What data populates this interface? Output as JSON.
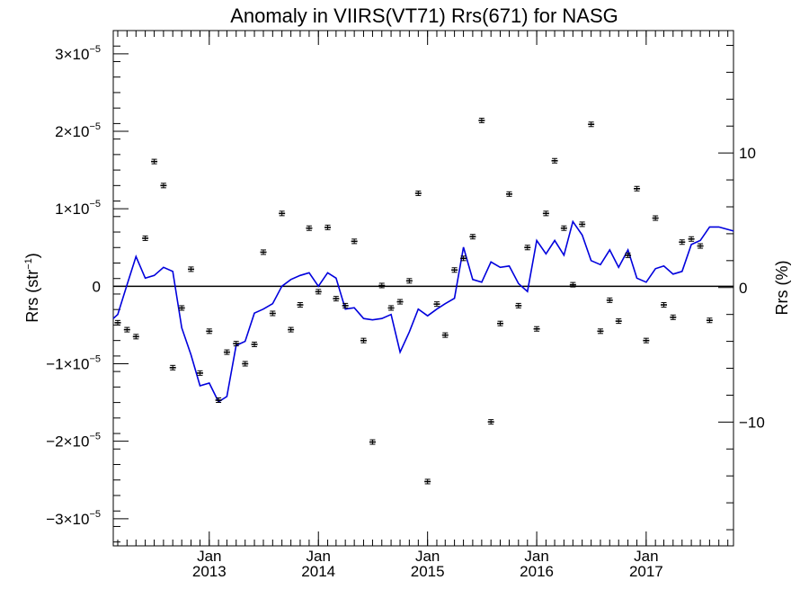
{
  "chart_data": {
    "type": "scatter",
    "title": "Anomaly in VIIRS(VT71) Rrs(671) for NASG",
    "ylabel_base": "Rrs (str",
    "ylabel_sup": "−1",
    "ylabel_close": ")",
    "y2label": "Rrs (%)",
    "xlim": [
      "2012-02-15",
      "2017-10-20"
    ],
    "ylim": [
      -3.35e-05,
      3.3e-05
    ],
    "y2lim": [
      -19.2,
      19.1
    ],
    "x_ticks": [
      {
        "month": "Jan",
        "year": "2013",
        "date": "2013-01-01"
      },
      {
        "month": "Jan",
        "year": "2014",
        "date": "2014-01-01"
      },
      {
        "month": "Jan",
        "year": "2015",
        "date": "2015-01-01"
      },
      {
        "month": "Jan",
        "year": "2016",
        "date": "2016-01-01"
      },
      {
        "month": "Jan",
        "year": "2017",
        "date": "2017-01-01"
      }
    ],
    "y_ticks": [
      {
        "value": 3e-05,
        "mant": "3",
        "times": "×10",
        "exp": "−5"
      },
      {
        "value": 2e-05,
        "mant": "2",
        "times": "×10",
        "exp": "−5"
      },
      {
        "value": 1e-05,
        "mant": "1",
        "times": "×10",
        "exp": "−5"
      },
      {
        "value": 0,
        "mant": "0",
        "times": "",
        "exp": ""
      },
      {
        "value": -1e-05,
        "mant": "−1",
        "times": "×10",
        "exp": "−5"
      },
      {
        "value": -2e-05,
        "mant": "−2",
        "times": "×10",
        "exp": "−5"
      },
      {
        "value": -3e-05,
        "mant": "−3",
        "times": "×10",
        "exp": "−5"
      }
    ],
    "y2_ticks": [
      {
        "value": 10,
        "label": "10"
      },
      {
        "value": 0,
        "label": "0"
      },
      {
        "value": -10,
        "label": "−10"
      }
    ],
    "zero_line": true,
    "grid": false,
    "series": [
      {
        "kind": "points_with_errorbars",
        "color": "#000000",
        "x": [
          "2012-03-01",
          "2012-04-01",
          "2012-05-01",
          "2012-06-01",
          "2012-07-01",
          "2012-08-01",
          "2012-09-01",
          "2012-10-01",
          "2012-11-01",
          "2012-12-01",
          "2013-01-01",
          "2013-02-01",
          "2013-03-01",
          "2013-04-01",
          "2013-05-01",
          "2013-06-01",
          "2013-07-01",
          "2013-08-01",
          "2013-09-01",
          "2013-10-01",
          "2013-11-01",
          "2013-12-01",
          "2014-01-01",
          "2014-02-01",
          "2014-03-01",
          "2014-04-01",
          "2014-05-01",
          "2014-06-01",
          "2014-07-01",
          "2014-08-01",
          "2014-09-01",
          "2014-10-01",
          "2014-11-01",
          "2014-12-01",
          "2015-01-01",
          "2015-02-01",
          "2015-03-01",
          "2015-04-01",
          "2015-05-01",
          "2015-06-01",
          "2015-07-01",
          "2015-08-01",
          "2015-09-01",
          "2015-10-01",
          "2015-11-01",
          "2015-12-01",
          "2016-01-01",
          "2016-02-01",
          "2016-03-01",
          "2016-04-01",
          "2016-05-01",
          "2016-06-01",
          "2016-07-01",
          "2016-08-01",
          "2016-09-01",
          "2016-10-01",
          "2016-11-01",
          "2016-12-01",
          "2017-01-01",
          "2017-02-01",
          "2017-03-01",
          "2017-04-01",
          "2017-05-01",
          "2017-06-01",
          "2017-07-01",
          "2017-08-01"
        ],
        "y": [
          -4.7e-06,
          -5.6e-06,
          -6.5e-06,
          6.2e-06,
          1.61e-05,
          1.3e-05,
          -1.05e-05,
          -2.8e-06,
          2.2e-06,
          -1.12e-05,
          -5.8e-06,
          -1.47e-05,
          -8.5e-06,
          -7.4e-06,
          -1e-05,
          -7.5e-06,
          4.4e-06,
          -3.5e-06,
          9.4e-06,
          -5.6e-06,
          -2.4e-06,
          7.5e-06,
          -7e-07,
          7.6e-06,
          -1.6e-06,
          -2.5e-06,
          5.8e-06,
          -7e-06,
          -2.01e-05,
          1e-07,
          -2.8e-06,
          -2e-06,
          7e-07,
          1.2e-05,
          -2.52e-05,
          -2.3e-06,
          -6.3e-06,
          2.1e-06,
          3.6e-06,
          6.4e-06,
          2.14e-05,
          -1.75e-05,
          -4.8e-06,
          1.19e-05,
          -2.5e-06,
          5e-06,
          -5.5e-06,
          9.4e-06,
          1.62e-05,
          7.5e-06,
          2e-07,
          8e-06,
          2.09e-05,
          -5.8e-06,
          -1.8e-06,
          -4.5e-06,
          4e-06,
          1.26e-05,
          -7e-06,
          8.8e-06,
          -2.4e-06,
          -4e-06,
          5.7e-06,
          6.1e-06,
          5.2e-06,
          -4.4e-06
        ]
      },
      {
        "kind": "line",
        "color": "#0000dd",
        "x": [
          "2012-02-15",
          "2012-03-01",
          "2012-04-01",
          "2012-05-01",
          "2012-06-01",
          "2012-07-01",
          "2012-08-01",
          "2012-09-01",
          "2012-10-01",
          "2012-11-01",
          "2012-12-01",
          "2013-01-01",
          "2013-02-01",
          "2013-03-01",
          "2013-04-01",
          "2013-05-01",
          "2013-06-01",
          "2013-07-01",
          "2013-08-01",
          "2013-09-01",
          "2013-10-01",
          "2013-11-01",
          "2013-12-01",
          "2014-01-01",
          "2014-02-01",
          "2014-03-01",
          "2014-04-01",
          "2014-05-01",
          "2014-06-01",
          "2014-07-01",
          "2014-08-01",
          "2014-09-01",
          "2014-10-01",
          "2014-11-01",
          "2014-12-01",
          "2015-01-01",
          "2015-02-01",
          "2015-03-01",
          "2015-04-01",
          "2015-05-01",
          "2015-06-01",
          "2015-07-01",
          "2015-08-01",
          "2015-09-01",
          "2015-10-01",
          "2015-11-01",
          "2015-12-01",
          "2016-01-01",
          "2016-02-01",
          "2016-03-01",
          "2016-04-01",
          "2016-05-01",
          "2016-06-01",
          "2016-07-01",
          "2016-08-01",
          "2016-09-01",
          "2016-10-01",
          "2016-11-01",
          "2016-12-01",
          "2017-01-01",
          "2017-02-01",
          "2017-03-01",
          "2017-04-01",
          "2017-05-01",
          "2017-06-01",
          "2017-07-01",
          "2017-08-01",
          "2017-09-01",
          "2017-10-20"
        ],
        "y": [
          -2.3,
          -2.0,
          0.2,
          2.3,
          0.7,
          0.9,
          1.5,
          1.2,
          -3.0,
          -5.0,
          -7.3,
          -7.1,
          -8.5,
          -8.1,
          -4.3,
          -4.0,
          -1.9,
          -1.6,
          -1.2,
          0.1,
          0.6,
          0.9,
          1.1,
          0.1,
          1.1,
          0.7,
          -1.6,
          -1.5,
          -2.3,
          -2.4,
          -2.3,
          -2.0,
          -4.8,
          -3.3,
          -1.6,
          -2.1,
          -1.6,
          -1.2,
          -0.8,
          3.0,
          0.6,
          0.4,
          1.9,
          1.5,
          1.6,
          0.3,
          -0.3,
          3.5,
          2.5,
          3.5,
          2.4,
          4.9,
          3.9,
          2.0,
          1.7,
          2.8,
          1.5,
          2.8,
          0.7,
          0.4,
          1.4,
          1.6,
          1.0,
          1.2,
          3.2,
          3.5,
          4.5,
          4.5,
          4.2
        ]
      }
    ]
  }
}
